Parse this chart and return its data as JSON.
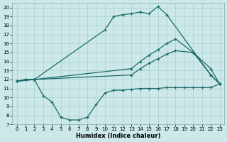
{
  "xlabel": "Humidex (Indice chaleur)",
  "background_color": "#cce8e8",
  "grid_color": "#aacfcf",
  "line_color": "#1a6b6b",
  "xlim": [
    -0.5,
    23.5
  ],
  "ylim": [
    7,
    20.5
  ],
  "yticks": [
    7,
    8,
    9,
    10,
    11,
    12,
    13,
    14,
    15,
    16,
    17,
    18,
    19,
    20
  ],
  "xticks": [
    0,
    1,
    2,
    3,
    4,
    5,
    6,
    7,
    8,
    9,
    10,
    11,
    12,
    13,
    14,
    15,
    16,
    17,
    18,
    19,
    20,
    21,
    22,
    23
  ],
  "lines": [
    {
      "x": [
        0,
        1,
        2,
        10,
        11,
        12,
        13,
        14,
        15,
        16,
        17,
        22,
        23
      ],
      "y": [
        11.8,
        12.0,
        12.0,
        17.5,
        19.0,
        19.2,
        19.3,
        19.5,
        19.3,
        20.1,
        19.2,
        12.5,
        11.5
      ]
    },
    {
      "x": [
        0,
        1,
        2,
        3,
        4,
        5,
        6,
        7,
        8,
        9,
        10,
        11,
        12,
        13,
        14,
        15,
        16,
        17,
        18,
        19,
        20,
        21,
        22,
        23
      ],
      "y": [
        11.8,
        12.0,
        12.0,
        10.2,
        9.5,
        7.8,
        7.5,
        7.5,
        7.8,
        9.2,
        10.5,
        10.8,
        10.8,
        10.9,
        11.0,
        11.0,
        11.0,
        11.1,
        11.1,
        11.1,
        11.1,
        11.1,
        11.1,
        11.5
      ]
    },
    {
      "x": [
        0,
        2,
        13,
        14,
        15,
        16,
        17,
        18,
        20,
        22,
        23
      ],
      "y": [
        11.8,
        12.0,
        13.2,
        14.0,
        14.7,
        15.3,
        16.0,
        16.5,
        15.0,
        13.2,
        11.5
      ]
    },
    {
      "x": [
        0,
        2,
        13,
        14,
        15,
        16,
        17,
        18,
        20,
        22,
        23
      ],
      "y": [
        11.8,
        12.0,
        12.5,
        13.2,
        13.8,
        14.3,
        14.8,
        15.2,
        15.0,
        12.5,
        11.5
      ]
    }
  ]
}
